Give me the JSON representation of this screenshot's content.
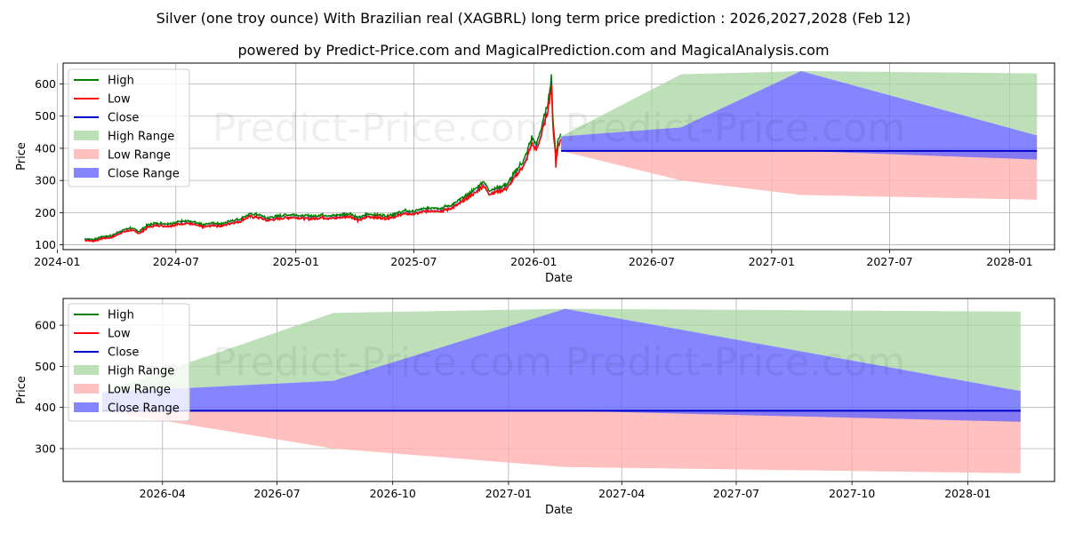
{
  "title": "Silver (one troy ounce) With Brazilian real (XAGBRL) long term price prediction : 2026,2027,2028 (Feb 12)",
  "subtitle": "powered by Predict-Price.com and MagicalPrediction.com and MagicalAnalysis.com",
  "watermark": "Predict-Price.com",
  "colors": {
    "high": "#008000",
    "low": "#ff0000",
    "close": "#0000cc",
    "high_range": "#a8d5a2",
    "low_range": "#ffb0b0",
    "close_range": "#6666ff"
  },
  "legend": [
    "High",
    "Low",
    "Close",
    "High Range",
    "Low Range",
    "Close Range"
  ],
  "chart_data": [
    {
      "type": "line",
      "name": "top",
      "xlabel": "Date",
      "ylabel": "Price",
      "xlim": [
        "2024-01-10",
        "2028-03-10"
      ],
      "ylim": [
        85,
        665
      ],
      "x_ticks": [
        {
          "date": "2024-01-01",
          "label": "2024-01"
        },
        {
          "date": "2024-07-01",
          "label": "2024-07"
        },
        {
          "date": "2025-01-01",
          "label": "2025-01"
        },
        {
          "date": "2025-07-01",
          "label": "2025-07"
        },
        {
          "date": "2026-01-01",
          "label": "2026-01"
        },
        {
          "date": "2026-07-01",
          "label": "2026-07"
        },
        {
          "date": "2027-01-01",
          "label": "2027-01"
        },
        {
          "date": "2027-07-01",
          "label": "2027-07"
        },
        {
          "date": "2028-01-01",
          "label": "2028-01"
        }
      ],
      "y_ticks": [
        100,
        200,
        300,
        400,
        500,
        600
      ],
      "history": [
        [
          "2024-02-12",
          116
        ],
        [
          "2024-02-26",
          113
        ],
        [
          "2024-03-11",
          122
        ],
        [
          "2024-03-25",
          125
        ],
        [
          "2024-04-08",
          140
        ],
        [
          "2024-04-22",
          148
        ],
        [
          "2024-05-06",
          138
        ],
        [
          "2024-05-20",
          158
        ],
        [
          "2024-06-03",
          163
        ],
        [
          "2024-06-17",
          160
        ],
        [
          "2024-07-01",
          165
        ],
        [
          "2024-07-15",
          170
        ],
        [
          "2024-07-29",
          165
        ],
        [
          "2024-08-12",
          157
        ],
        [
          "2024-08-26",
          163
        ],
        [
          "2024-09-09",
          160
        ],
        [
          "2024-09-23",
          170
        ],
        [
          "2024-10-07",
          175
        ],
        [
          "2024-10-21",
          190
        ],
        [
          "2024-11-04",
          188
        ],
        [
          "2024-11-18",
          178
        ],
        [
          "2024-12-02",
          183
        ],
        [
          "2024-12-16",
          187
        ],
        [
          "2024-12-30",
          188
        ],
        [
          "2025-01-13",
          185
        ],
        [
          "2025-01-27",
          183
        ],
        [
          "2025-02-10",
          188
        ],
        [
          "2025-02-24",
          185
        ],
        [
          "2025-03-10",
          188
        ],
        [
          "2025-03-24",
          192
        ],
        [
          "2025-04-07",
          178
        ],
        [
          "2025-04-21",
          190
        ],
        [
          "2025-05-05",
          188
        ],
        [
          "2025-05-19",
          185
        ],
        [
          "2025-06-02",
          190
        ],
        [
          "2025-06-16",
          200
        ],
        [
          "2025-06-30",
          198
        ],
        [
          "2025-07-14",
          205
        ],
        [
          "2025-07-28",
          210
        ],
        [
          "2025-08-11",
          208
        ],
        [
          "2025-08-25",
          215
        ],
        [
          "2025-09-08",
          230
        ],
        [
          "2025-09-22",
          250
        ],
        [
          "2025-10-06",
          270
        ],
        [
          "2025-10-16",
          290
        ],
        [
          "2025-10-24",
          262
        ],
        [
          "2025-11-07",
          270
        ],
        [
          "2025-11-21",
          280
        ],
        [
          "2025-12-05",
          320
        ],
        [
          "2025-12-19",
          360
        ],
        [
          "2025-12-29",
          420
        ],
        [
          "2026-01-05",
          400
        ],
        [
          "2026-01-14",
          460
        ],
        [
          "2026-01-22",
          520
        ],
        [
          "2026-01-28",
          600
        ],
        [
          "2026-01-31",
          460
        ],
        [
          "2026-02-04",
          370
        ],
        [
          "2026-02-08",
          420
        ],
        [
          "2026-02-12",
          430
        ]
      ],
      "high_peak": 630,
      "low_trough": 340,
      "series": [
        {
          "name": "High Range",
          "x": [
            "2026-02-12",
            "2026-08-15",
            "2027-02-15",
            "2028-02-12"
          ],
          "upper": [
            437,
            630,
            640,
            633
          ],
          "lower": [
            437,
            465,
            640,
            440
          ]
        },
        {
          "name": "Low Range",
          "x": [
            "2026-02-12",
            "2026-08-15",
            "2027-02-15",
            "2028-02-12"
          ],
          "upper": [
            392,
            392,
            392,
            392
          ],
          "lower": [
            392,
            300,
            255,
            240
          ]
        },
        {
          "name": "Close Range",
          "x": [
            "2026-02-12",
            "2026-08-15",
            "2027-02-15",
            "2028-02-12"
          ],
          "upper": [
            437,
            465,
            640,
            440
          ],
          "lower": [
            392,
            392,
            392,
            365
          ]
        },
        {
          "name": "Close",
          "x": [
            "2026-02-12",
            "2028-02-12"
          ],
          "values": [
            392,
            392
          ]
        }
      ]
    },
    {
      "type": "line",
      "name": "bottom",
      "xlabel": "Date",
      "ylabel": "Price",
      "xlim": [
        "2026-01-12",
        "2028-03-10"
      ],
      "ylim": [
        220,
        665
      ],
      "x_ticks": [
        {
          "date": "2026-04-01",
          "label": "2026-04"
        },
        {
          "date": "2026-07-01",
          "label": "2026-07"
        },
        {
          "date": "2026-10-01",
          "label": "2026-10"
        },
        {
          "date": "2027-01-01",
          "label": "2027-01"
        },
        {
          "date": "2027-04-01",
          "label": "2027-04"
        },
        {
          "date": "2027-07-01",
          "label": "2027-07"
        },
        {
          "date": "2027-10-01",
          "label": "2027-10"
        },
        {
          "date": "2028-01-01",
          "label": "2028-01"
        }
      ],
      "y_ticks": [
        300,
        400,
        500,
        600
      ],
      "series": [
        {
          "name": "High Range",
          "x": [
            "2026-02-12",
            "2026-08-15",
            "2027-02-15",
            "2028-02-12"
          ],
          "upper": [
            437,
            630,
            640,
            633
          ],
          "lower": [
            437,
            465,
            640,
            440
          ]
        },
        {
          "name": "Low Range",
          "x": [
            "2026-02-12",
            "2026-08-15",
            "2027-02-15",
            "2028-02-12"
          ],
          "upper": [
            392,
            392,
            392,
            392
          ],
          "lower": [
            392,
            300,
            255,
            240
          ]
        },
        {
          "name": "Close Range",
          "x": [
            "2026-02-12",
            "2026-08-15",
            "2027-02-15",
            "2028-02-12"
          ],
          "upper": [
            437,
            465,
            640,
            440
          ],
          "lower": [
            392,
            392,
            392,
            365
          ]
        },
        {
          "name": "Close",
          "x": [
            "2026-02-12",
            "2028-02-12"
          ],
          "values": [
            392,
            392
          ]
        }
      ]
    }
  ]
}
